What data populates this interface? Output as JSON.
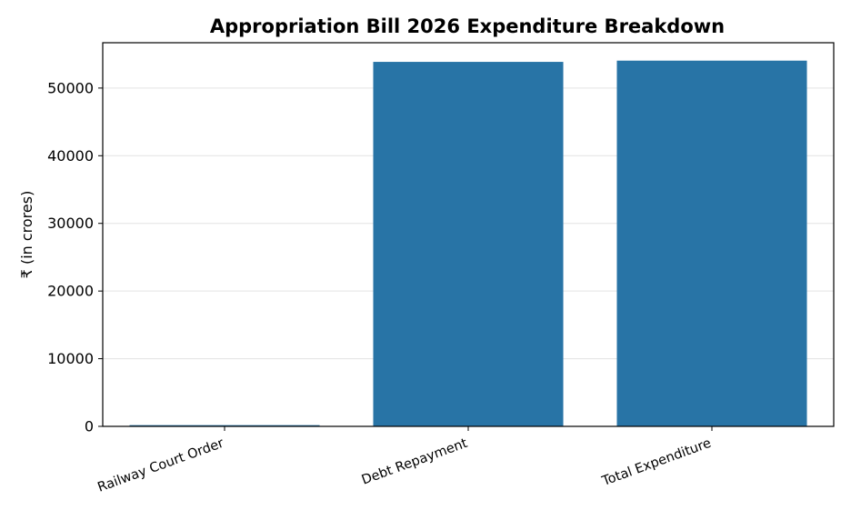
{
  "chart_data": {
    "type": "bar",
    "title": "Appropriation Bill 2026 Expenditure Breakdown",
    "xlabel": "",
    "ylabel": "₹ (in crores)",
    "categories": [
      "Railway Court Order",
      "Debt Repayment",
      "Total Expenditure"
    ],
    "values": [
      182,
      53870,
      54052
    ],
    "ylim": [
      0,
      56700
    ],
    "yticks": [
      0,
      10000,
      20000,
      30000,
      40000,
      50000
    ],
    "ytick_labels": [
      "0",
      "10000",
      "20000",
      "30000",
      "40000",
      "50000"
    ],
    "grid": "y",
    "bar_color": "#2874a6"
  }
}
